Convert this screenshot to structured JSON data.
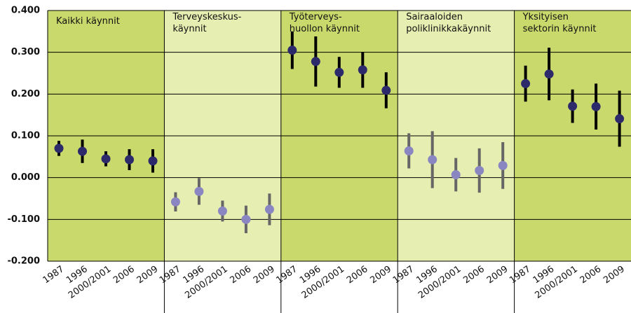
{
  "chart_data": {
    "type": "errorbar",
    "ylim": [
      -0.2,
      0.4
    ],
    "yticks": [
      {
        "value": -0.2,
        "label": "-0.200"
      },
      {
        "value": -0.1,
        "label": "-0.100"
      },
      {
        "value": 0,
        "label": "0.000"
      },
      {
        "value": 0.1,
        "label": "0.100"
      },
      {
        "value": 0.2,
        "label": "0.200"
      },
      {
        "value": 0.3,
        "label": "0.300"
      },
      {
        "value": 0.4,
        "label": "0.400"
      }
    ],
    "grid": true,
    "panels": [
      {
        "title": [
          "Kaikki käynnit"
        ],
        "background": "#c9d96b",
        "color": "#2d2a6b",
        "error_color": "#000000",
        "categories": [
          "1987",
          "1996",
          "2000/2001",
          "2006",
          "2009"
        ],
        "values": [
          0.07,
          0.063,
          0.045,
          0.043,
          0.04
        ],
        "errors": [
          0.018,
          0.028,
          0.018,
          0.025,
          0.028
        ]
      },
      {
        "title": [
          "Terveyskeskus-",
          "käynnit"
        ],
        "background": "#e6eeb1",
        "color": "#8a86c2",
        "error_color": "#666666",
        "categories": [
          "1987",
          "1996",
          "2000/2001",
          "2006",
          "2009"
        ],
        "values": [
          -0.058,
          -0.033,
          -0.08,
          -0.1,
          -0.076
        ],
        "errors": [
          0.023,
          0.032,
          0.025,
          0.033,
          0.038
        ]
      },
      {
        "title": [
          "Työterveys-",
          "huollon käynnit"
        ],
        "background": "#c9d96b",
        "color": "#2d2a6b",
        "error_color": "#000000",
        "categories": [
          "1987",
          "1996",
          "2000/2001",
          "2006",
          "2009"
        ],
        "values": [
          0.305,
          0.278,
          0.252,
          0.258,
          0.209
        ],
        "errors": [
          0.045,
          0.06,
          0.037,
          0.043,
          0.043
        ]
      },
      {
        "title": [
          "Sairaaloiden",
          "poliklinikkakäynnit"
        ],
        "background": "#e6eeb1",
        "color": "#8a86c2",
        "error_color": "#666666",
        "categories": [
          "1987",
          "1996",
          "2000/2001",
          "2006",
          "2009"
        ],
        "values": [
          0.064,
          0.043,
          0.007,
          0.017,
          0.029
        ],
        "errors": [
          0.042,
          0.068,
          0.04,
          0.053,
          0.056
        ]
      },
      {
        "title": [
          "Yksityisen",
          "sektorin käynnit"
        ],
        "background": "#c9d96b",
        "color": "#2d2a6b",
        "error_color": "#000000",
        "categories": [
          "1987",
          "1996",
          "2000/2001",
          "2006",
          "2009"
        ],
        "values": [
          0.225,
          0.248,
          0.171,
          0.17,
          0.141
        ],
        "errors": [
          0.043,
          0.063,
          0.04,
          0.055,
          0.067
        ]
      }
    ]
  }
}
